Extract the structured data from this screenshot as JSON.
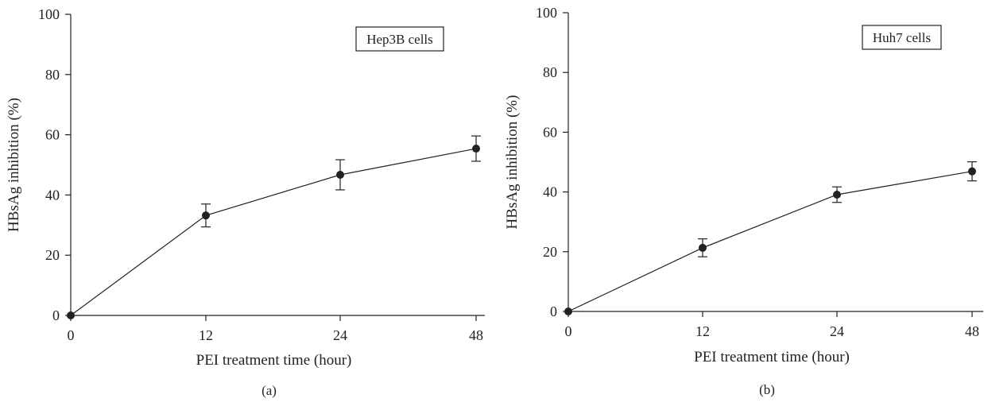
{
  "chart_data": [
    {
      "type": "line",
      "panel_label": "(a)",
      "legend_box": "Hep3B cells",
      "xlabel": "PEI treatment time (hour)",
      "ylabel": "HBsAg inhibition (%)",
      "x_ticks": [
        0,
        12,
        24,
        48
      ],
      "y_ticks": [
        0,
        20,
        40,
        60,
        80,
        100
      ],
      "ylim": [
        0,
        100
      ],
      "x_scale": "categorical",
      "grid": false,
      "series": [
        {
          "x": [
            0,
            12,
            24,
            48
          ],
          "y": [
            0,
            33.2,
            46.7,
            55.4
          ],
          "error": [
            0,
            3.8,
            5.0,
            4.2
          ]
        }
      ]
    },
    {
      "type": "line",
      "panel_label": "(b)",
      "legend_box": "Huh7 cells",
      "xlabel": "PEI treatment time (hour)",
      "ylabel": "HBsAg inhibition (%)",
      "x_ticks": [
        0,
        12,
        24,
        48
      ],
      "y_ticks": [
        0,
        20,
        40,
        60,
        80,
        100
      ],
      "ylim": [
        0,
        100
      ],
      "x_scale": "categorical",
      "grid": false,
      "series": [
        {
          "x": [
            0,
            12,
            24,
            48
          ],
          "y": [
            0,
            21.3,
            39.1,
            46.9
          ],
          "error": [
            0,
            3.0,
            2.6,
            3.2
          ]
        }
      ]
    }
  ]
}
